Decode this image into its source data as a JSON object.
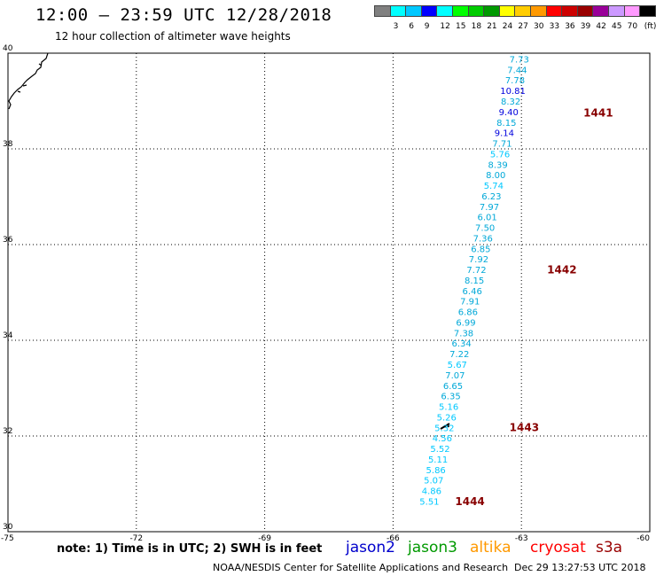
{
  "header": {
    "title": "12:00 — 23:59 UTC 12/28/2018",
    "subtitle": "12 hour collection of altimeter wave heights"
  },
  "legend": {
    "unit_label": "(ft)",
    "bins": [
      {
        "label": "",
        "color": "#808080"
      },
      {
        "label": "3",
        "color": "#00ffff"
      },
      {
        "label": "6",
        "color": "#00c8ff"
      },
      {
        "label": "9",
        "color": "#0000ff"
      },
      {
        "label": "12",
        "color": "#00ffff"
      },
      {
        "label": "15",
        "color": "#00ff00"
      },
      {
        "label": "18",
        "color": "#00cc00"
      },
      {
        "label": "21",
        "color": "#009900"
      },
      {
        "label": "24",
        "color": "#ffff00"
      },
      {
        "label": "27",
        "color": "#ffcc00"
      },
      {
        "label": "30",
        "color": "#ff9900"
      },
      {
        "label": "33",
        "color": "#ff0000"
      },
      {
        "label": "36",
        "color": "#cc0000"
      },
      {
        "label": "39",
        "color": "#990000"
      },
      {
        "label": "42",
        "color": "#990099"
      },
      {
        "label": "45",
        "color": "#cc99ff"
      },
      {
        "label": "70",
        "color": "#ff99ff"
      },
      {
        "label": "",
        "color": "#000000"
      }
    ]
  },
  "map": {
    "lon_range": [
      -75,
      -60
    ],
    "lat_range": [
      30,
      40
    ],
    "lon_ticks": [
      "-75",
      "-72",
      "-69",
      "-66",
      "-63",
      "-60"
    ],
    "lat_ticks": [
      "30",
      "32",
      "34",
      "36",
      "38",
      "40"
    ],
    "grid": true,
    "wave_heights": [
      {
        "value": "7.73",
        "lon": -63.05,
        "lat": 39.88,
        "color": "#00a8d8"
      },
      {
        "value": "7.44",
        "lon": -63.1,
        "lat": 39.66,
        "color": "#00a8d8"
      },
      {
        "value": "7.78",
        "lon": -63.15,
        "lat": 39.44,
        "color": "#00a8d8"
      },
      {
        "value": "10.81",
        "lon": -63.2,
        "lat": 39.22,
        "color": "#0000dd"
      },
      {
        "value": "8.32",
        "lon": -63.25,
        "lat": 39.0,
        "color": "#00a8d8"
      },
      {
        "value": "9.40",
        "lon": -63.3,
        "lat": 38.78,
        "color": "#0000dd"
      },
      {
        "value": "8.15",
        "lon": -63.35,
        "lat": 38.56,
        "color": "#00a8d8"
      },
      {
        "value": "9.14",
        "lon": -63.4,
        "lat": 38.34,
        "color": "#0000dd"
      },
      {
        "value": "7.71",
        "lon": -63.45,
        "lat": 38.12,
        "color": "#00a8d8"
      },
      {
        "value": "5.76",
        "lon": -63.5,
        "lat": 37.9,
        "color": "#00c8ff"
      },
      {
        "value": "8.39",
        "lon": -63.55,
        "lat": 37.68,
        "color": "#00a8d8"
      },
      {
        "value": "8.00",
        "lon": -63.6,
        "lat": 37.46,
        "color": "#00a8d8"
      },
      {
        "value": "5.74",
        "lon": -63.65,
        "lat": 37.24,
        "color": "#00c8ff"
      },
      {
        "value": "6.23",
        "lon": -63.7,
        "lat": 37.02,
        "color": "#00a8d8"
      },
      {
        "value": "7.97",
        "lon": -63.75,
        "lat": 36.8,
        "color": "#00a8d8"
      },
      {
        "value": "6.01",
        "lon": -63.8,
        "lat": 36.58,
        "color": "#00a8d8"
      },
      {
        "value": "7.50",
        "lon": -63.85,
        "lat": 36.36,
        "color": "#00a8d8"
      },
      {
        "value": "7.36",
        "lon": -63.9,
        "lat": 36.14,
        "color": "#00a8d8"
      },
      {
        "value": "6.85",
        "lon": -63.95,
        "lat": 35.92,
        "color": "#00a8d8"
      },
      {
        "value": "7.92",
        "lon": -64.0,
        "lat": 35.7,
        "color": "#00a8d8"
      },
      {
        "value": "7.72",
        "lon": -64.05,
        "lat": 35.48,
        "color": "#00a8d8"
      },
      {
        "value": "8.15",
        "lon": -64.1,
        "lat": 35.26,
        "color": "#00a8d8"
      },
      {
        "value": "6.46",
        "lon": -64.15,
        "lat": 35.04,
        "color": "#00a8d8"
      },
      {
        "value": "7.91",
        "lon": -64.2,
        "lat": 34.82,
        "color": "#00a8d8"
      },
      {
        "value": "6.86",
        "lon": -64.25,
        "lat": 34.6,
        "color": "#00a8d8"
      },
      {
        "value": "6.99",
        "lon": -64.3,
        "lat": 34.38,
        "color": "#00a8d8"
      },
      {
        "value": "7.38",
        "lon": -64.35,
        "lat": 34.16,
        "color": "#00a8d8"
      },
      {
        "value": "6.34",
        "lon": -64.4,
        "lat": 33.94,
        "color": "#00a8d8"
      },
      {
        "value": "7.22",
        "lon": -64.45,
        "lat": 33.72,
        "color": "#00a8d8"
      },
      {
        "value": "5.67",
        "lon": -64.5,
        "lat": 33.5,
        "color": "#00c8ff"
      },
      {
        "value": "7.07",
        "lon": -64.55,
        "lat": 33.28,
        "color": "#00a8d8"
      },
      {
        "value": "6.65",
        "lon": -64.6,
        "lat": 33.06,
        "color": "#00a8d8"
      },
      {
        "value": "6.35",
        "lon": -64.65,
        "lat": 32.84,
        "color": "#00a8d8"
      },
      {
        "value": "5.16",
        "lon": -64.7,
        "lat": 32.62,
        "color": "#00c8ff"
      },
      {
        "value": "5.26",
        "lon": -64.75,
        "lat": 32.4,
        "color": "#00c8ff"
      },
      {
        "value": "5.32",
        "lon": -64.8,
        "lat": 32.18,
        "color": "#00c8ff"
      },
      {
        "value": "4.56",
        "lon": -64.85,
        "lat": 31.96,
        "color": "#00c8ff"
      },
      {
        "value": "5.52",
        "lon": -64.9,
        "lat": 31.74,
        "color": "#00c8ff"
      },
      {
        "value": "5.11",
        "lon": -64.95,
        "lat": 31.52,
        "color": "#00c8ff"
      },
      {
        "value": "5.86",
        "lon": -65.0,
        "lat": 31.3,
        "color": "#00c8ff"
      },
      {
        "value": "5.07",
        "lon": -65.05,
        "lat": 31.08,
        "color": "#00c8ff"
      },
      {
        "value": "4.86",
        "lon": -65.1,
        "lat": 30.86,
        "color": "#00c8ff"
      },
      {
        "value": "5.51",
        "lon": -65.15,
        "lat": 30.64,
        "color": "#00c8ff"
      }
    ],
    "pass_labels": [
      {
        "text": "1441",
        "lon": -61.55,
        "lat": 38.77,
        "color": "#880000"
      },
      {
        "text": "1442",
        "lon": -62.4,
        "lat": 35.49,
        "color": "#880000"
      },
      {
        "text": "1443",
        "lon": -63.28,
        "lat": 32.19,
        "color": "#880000"
      },
      {
        "text": "1444",
        "lon": -64.55,
        "lat": 30.65,
        "color": "#880000"
      }
    ]
  },
  "footer": {
    "note": "note:  1) Time is in UTC;  2) SWH is in feet",
    "satellites": [
      {
        "name": "jason2",
        "color": "#0000cc"
      },
      {
        "name": "jason3",
        "color": "#009900"
      },
      {
        "name": "altika",
        "color": "#ff9900"
      },
      {
        "name": "cryosat",
        "color": "#ff0000"
      },
      {
        "name": "s3a",
        "color": "#990000"
      }
    ],
    "credit": "NOAA/NESDIS Center for Satellite Applications and Research",
    "timestamp": "Dec 29 13:27:53 UTC 2018"
  }
}
